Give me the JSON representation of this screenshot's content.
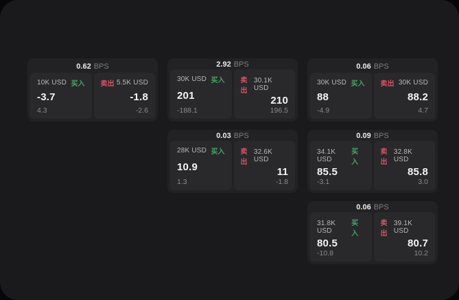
{
  "labels": {
    "bps_suffix": "BPS",
    "buy": "买入",
    "sell": "卖出"
  },
  "colors": {
    "buy_accent": "#46a465",
    "sell_accent": "#cf5565",
    "window_bg": "#1a1a1c",
    "card_bg": "#222224",
    "panel_bg": "#29292b"
  },
  "cards": [
    {
      "bps": "0.62",
      "row": 1,
      "col": 1,
      "buy": {
        "amount": "10K USD",
        "value": "-3.7",
        "delta": "4.3"
      },
      "sell": {
        "amount": "5.5K USD",
        "value": "-1.8",
        "delta": "-2.6"
      }
    },
    {
      "bps": "2.92",
      "row": 1,
      "col": 2,
      "buy": {
        "amount": "30K USD",
        "value": "201",
        "delta": "-188.1"
      },
      "sell": {
        "amount": "30.1K USD",
        "value": "210",
        "delta": "196.5"
      }
    },
    {
      "bps": "0.06",
      "row": 1,
      "col": 3,
      "buy": {
        "amount": "30K USD",
        "value": "88",
        "delta": "-4.9"
      },
      "sell": {
        "amount": "30K USD",
        "value": "88.2",
        "delta": "4.7"
      }
    },
    {
      "bps": "0.03",
      "row": 2,
      "col": 2,
      "buy": {
        "amount": "28K USD",
        "value": "10.9",
        "delta": "1.3"
      },
      "sell": {
        "amount": "32.6K USD",
        "value": "11",
        "delta": "-1.8"
      }
    },
    {
      "bps": "0.09",
      "row": 2,
      "col": 3,
      "buy": {
        "amount": "34.1K USD",
        "value": "85.5",
        "delta": "-3.1"
      },
      "sell": {
        "amount": "32.8K USD",
        "value": "85.8",
        "delta": "3.0"
      }
    },
    {
      "bps": "0.06",
      "row": 3,
      "col": 3,
      "buy": {
        "amount": "31.8K USD",
        "value": "80.5",
        "delta": "-10.8"
      },
      "sell": {
        "amount": "39.1K USD",
        "value": "80.7",
        "delta": "10.2"
      }
    }
  ]
}
